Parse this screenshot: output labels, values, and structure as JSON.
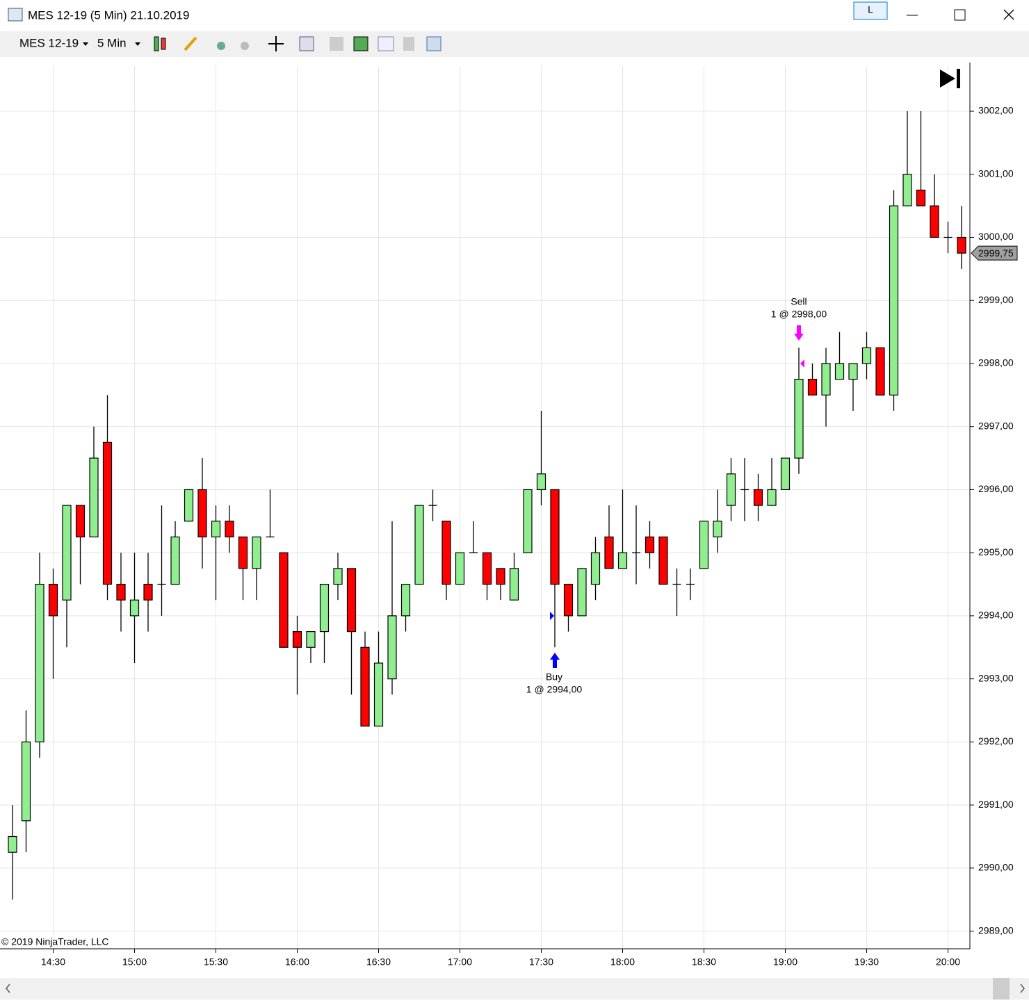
{
  "window": {
    "title": "MES 12-19 (5 Min)  21.10.2019",
    "button": "L"
  },
  "toolbar": {
    "instrument": "MES 12-19",
    "interval": "5 Min"
  },
  "chart_data": {
    "type": "candlestick",
    "copyright": "© 2019 NinjaTrader, LLC",
    "categories": [
      null,
      null,
      null,
      "14:30",
      null,
      null,
      null,
      null,
      null,
      "15:00",
      null,
      null,
      null,
      null,
      null,
      "15:30",
      null,
      null,
      null,
      null,
      null,
      "16:00",
      null,
      null,
      null,
      null,
      null,
      "16:30",
      null,
      null,
      null,
      null,
      null,
      "17:00",
      null,
      null,
      null,
      null,
      null,
      "17:30",
      null,
      null,
      null,
      null,
      null,
      "18:00",
      null,
      null,
      null,
      null,
      null,
      "18:30",
      null,
      null,
      null,
      null,
      null,
      "19:00",
      null,
      null,
      null,
      null,
      null,
      "19:30",
      null,
      null,
      null,
      null,
      null,
      "20:00",
      null
    ],
    "open": [
      2990.25,
      2990.75,
      2992,
      2994.5,
      2994.25,
      2995.75,
      2995.25,
      2996.75,
      2994.5,
      2994,
      2994.5,
      2994.5,
      2994.5,
      2995.5,
      2996,
      2995.25,
      2995.5,
      2995.25,
      2994.75,
      2995.25,
      2995,
      2993.75,
      2993.5,
      2993.75,
      2994.5,
      2994.75,
      2993.5,
      2992.25,
      2993,
      2994,
      2994.5,
      2995.75,
      2995.5,
      2994.5,
      2995,
      2995,
      2994.75,
      2994.25,
      2995,
      2996,
      2996,
      2994.5,
      2994,
      2994.5,
      2995.25,
      2994.75,
      2995,
      2995.25,
      2995.25,
      2994.5,
      2994.5,
      2994.75,
      2995.25,
      2995.75,
      2996,
      2996,
      2995.75,
      2996,
      2996.5,
      2997.75,
      2997.5,
      2997.75,
      2997.75,
      2998,
      2998.25,
      2997.5,
      3000.5,
      3000.75,
      3000.5,
      3000,
      3000
    ],
    "high": [
      2991,
      2992.5,
      2995,
      2994.75,
      2995.75,
      2995.75,
      2997,
      2997.5,
      2995,
      2995,
      2995,
      2995.75,
      2995.5,
      2996,
      2996.5,
      2995.75,
      2995.75,
      2995.25,
      2995.25,
      2996,
      2995,
      2994,
      2993.75,
      2994.5,
      2995,
      2994.75,
      2993.75,
      2993.75,
      2995.5,
      2994.5,
      2995.75,
      2996,
      2995.5,
      2995,
      2995.5,
      2995,
      2994.75,
      2995,
      2996,
      2997.25,
      2996,
      2994.5,
      2994.75,
      2995.25,
      2995.75,
      2996,
      2995.75,
      2995.5,
      2995.25,
      2994.75,
      2994.75,
      2995.5,
      2996,
      2996.5,
      2996.5,
      2996.25,
      2996.5,
      2996.5,
      2998.25,
      2998,
      2998.25,
      2998.5,
      2998,
      2998.5,
      2998.25,
      3000.75,
      3002,
      3002,
      3001,
      3000.25,
      3000.5
    ],
    "low": [
      2989.5,
      2990.25,
      2991.75,
      2993,
      2993.5,
      2994.5,
      2995.25,
      2994.25,
      2993.75,
      2993.25,
      2993.75,
      2994,
      2994.5,
      2995.5,
      2994.75,
      2994.25,
      2995,
      2994.25,
      2994.25,
      2995.25,
      2993.5,
      2992.75,
      2993.25,
      2993.25,
      2994.25,
      2992.75,
      2992.25,
      2992.25,
      2992.75,
      2993.75,
      2994.5,
      2995.5,
      2994.25,
      2994.5,
      2995,
      2994.25,
      2994.25,
      2994.25,
      2995,
      2995.75,
      2993.5,
      2993.75,
      2994,
      2994.25,
      2994.75,
      2994.75,
      2994.5,
      2994.75,
      2994.5,
      2994,
      2994.25,
      2994.75,
      2995,
      2995.5,
      2995.5,
      2995.5,
      2995.75,
      2996,
      2996.25,
      2997.5,
      2997,
      2997.75,
      2997.25,
      2997.75,
      2997.5,
      2997.25,
      3000.5,
      3000.5,
      3000,
      2999.75,
      2999.5
    ],
    "close": [
      2990.5,
      2992,
      2994.5,
      2994,
      2995.75,
      2995.25,
      2996.5,
      2994.5,
      2994.25,
      2994.25,
      2994.25,
      2994.5,
      2995.25,
      2996,
      2995.25,
      2995.5,
      2995.25,
      2994.75,
      2995.25,
      2995.25,
      2993.5,
      2993.5,
      2993.75,
      2994.5,
      2994.75,
      2993.75,
      2992.25,
      2993.25,
      2994,
      2994.5,
      2995.75,
      2995.75,
      2994.5,
      2995,
      2995,
      2994.5,
      2994.5,
      2994.75,
      2996,
      2996.25,
      2994.5,
      2994,
      2994.75,
      2995,
      2994.75,
      2995,
      2995,
      2995,
      2994.5,
      2994.5,
      2994.5,
      2995.5,
      2995.5,
      2996.25,
      2996,
      2995.75,
      2996,
      2996.5,
      2997.75,
      2997.5,
      2998,
      2998,
      2998,
      2998.25,
      2997.5,
      3000.5,
      3001,
      3000.5,
      3000,
      3000,
      2999.75
    ],
    "up_color": "#90ee90",
    "down_color": "#ff0000",
    "ylim": [
      2988.72,
      3002.86
    ],
    "yticks": [
      {
        "value": 2989,
        "label": "2989,00"
      },
      {
        "value": 2990,
        "label": "2990,00"
      },
      {
        "value": 2991,
        "label": "2991,00"
      },
      {
        "value": 2992,
        "label": "2992,00"
      },
      {
        "value": 2993,
        "label": "2993,00"
      },
      {
        "value": 2994,
        "label": "2994,00"
      },
      {
        "value": 2995,
        "label": "2995,00"
      },
      {
        "value": 2996,
        "label": "2996,00"
      },
      {
        "value": 2997,
        "label": "2997,00"
      },
      {
        "value": 2998,
        "label": "2998,00"
      },
      {
        "value": 2999,
        "label": "2999,00"
      },
      {
        "value": 3000,
        "label": "3000,00"
      },
      {
        "value": 3001,
        "label": "3001,00"
      },
      {
        "value": 3002,
        "label": "3002,00"
      }
    ],
    "last_price": {
      "value": 2999.75,
      "label": "2999,75"
    },
    "buy": {
      "text": "Buy",
      "detail": "1 @ 2994,00"
    },
    "sell": {
      "text": "Sell",
      "detail": "1 @ 2998,00"
    },
    "grid": true
  }
}
